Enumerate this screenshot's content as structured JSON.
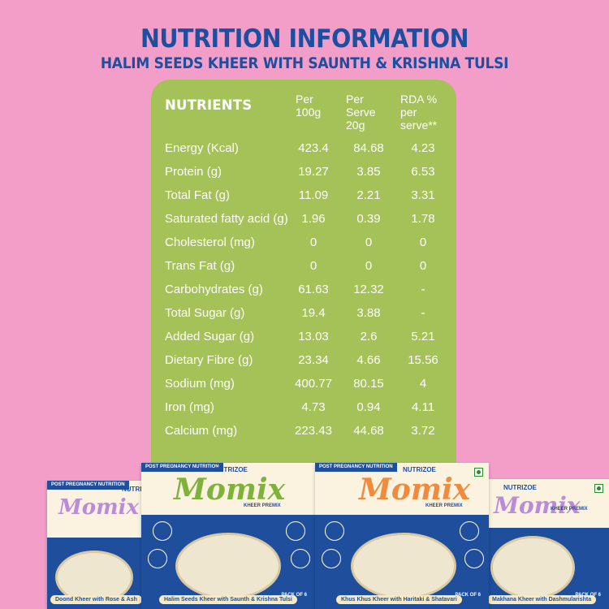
{
  "header": {
    "title": "NUTRITION INFORMATION",
    "subtitle": "HALIM SEEDS KHEER WITH SAUNTH & KRISHNA TULSI"
  },
  "table": {
    "headers": {
      "nutrients": "NUTRIENTS",
      "per100": "Per 100g",
      "perServe": "Per Serve 20g",
      "rda": "RDA % per serve**"
    },
    "rows": [
      {
        "name": "Energy (Kcal)",
        "per100": "423.4",
        "serve": "84.68",
        "rda": "4.23"
      },
      {
        "name": "Protein (g)",
        "per100": "19.27",
        "serve": "3.85",
        "rda": "6.53"
      },
      {
        "name": "Total Fat (g)",
        "per100": "11.09",
        "serve": "2.21",
        "rda": "3.31"
      },
      {
        "name": "Saturated fatty acid (g)",
        "per100": "1.96",
        "serve": "0.39",
        "rda": "1.78"
      },
      {
        "name": "Cholesterol (mg)",
        "per100": "0",
        "serve": "0",
        "rda": "0"
      },
      {
        "name": "Trans Fat (g)",
        "per100": "0",
        "serve": "0",
        "rda": "0"
      },
      {
        "name": "Carbohydrates (g)",
        "per100": "61.63",
        "serve": "12.32",
        "rda": "-"
      },
      {
        "name": "Total Sugar (g)",
        "per100": "19.4",
        "serve": "3.88",
        "rda": "-"
      },
      {
        "name": "Added Sugar (g)",
        "per100": "13.03",
        "serve": "2.6",
        "rda": "5.21"
      },
      {
        "name": "Dietary Fibre (g)",
        "per100": "23.34",
        "serve": "4.66",
        "rda": "15.56"
      },
      {
        "name": "Sodium (mg)",
        "per100": "400.77",
        "serve": "80.15",
        "rda": "4"
      },
      {
        "name": "Iron (mg)",
        "per100": "4.73",
        "serve": "0.94",
        "rda": "4.11"
      },
      {
        "name": "Calcium (mg)",
        "per100": "223.43",
        "serve": "44.68",
        "rda": "3.72"
      }
    ]
  },
  "products": [
    {
      "tag": "POST PREGNANCY NUTRITION",
      "brand": "NUTRIZOE",
      "logo": "Momix",
      "caption": "Doond Kheer with Rose & Ash",
      "logo_color": "#b98bd9"
    },
    {
      "tag": "POST PREGNANCY NUTRITION",
      "brand": "NUTRIZOE",
      "logo": "Momix",
      "sub": "KHEER PREMIX",
      "caption": "Halim Seeds Kheer with Saunth & Krishna Tulsi",
      "pack": "PACK OF 6",
      "logo_color": "#7fb23a"
    },
    {
      "tag": "POST PREGNANCY NUTRITION",
      "brand": "NUTRIZOE",
      "logo": "Momix",
      "sub": "KHEER PREMIX",
      "caption": "Khus Khus Kheer with Haritaki & Shatavari",
      "pack": "PACK OF 6",
      "logo_color": "#f08a3c"
    },
    {
      "brand": "NUTRIZOE",
      "logo": "Momix",
      "sub": "KHEER PREMIX",
      "caption": "Makhana Kheer with Dashmularishta",
      "pack": "PACK OF 6",
      "logo_color": "#b98bd9"
    }
  ],
  "colors": {
    "background": "#f29ec8",
    "heading": "#1c4fa0",
    "panel": "#a4c257",
    "box_blue": "#1e4e9c"
  }
}
